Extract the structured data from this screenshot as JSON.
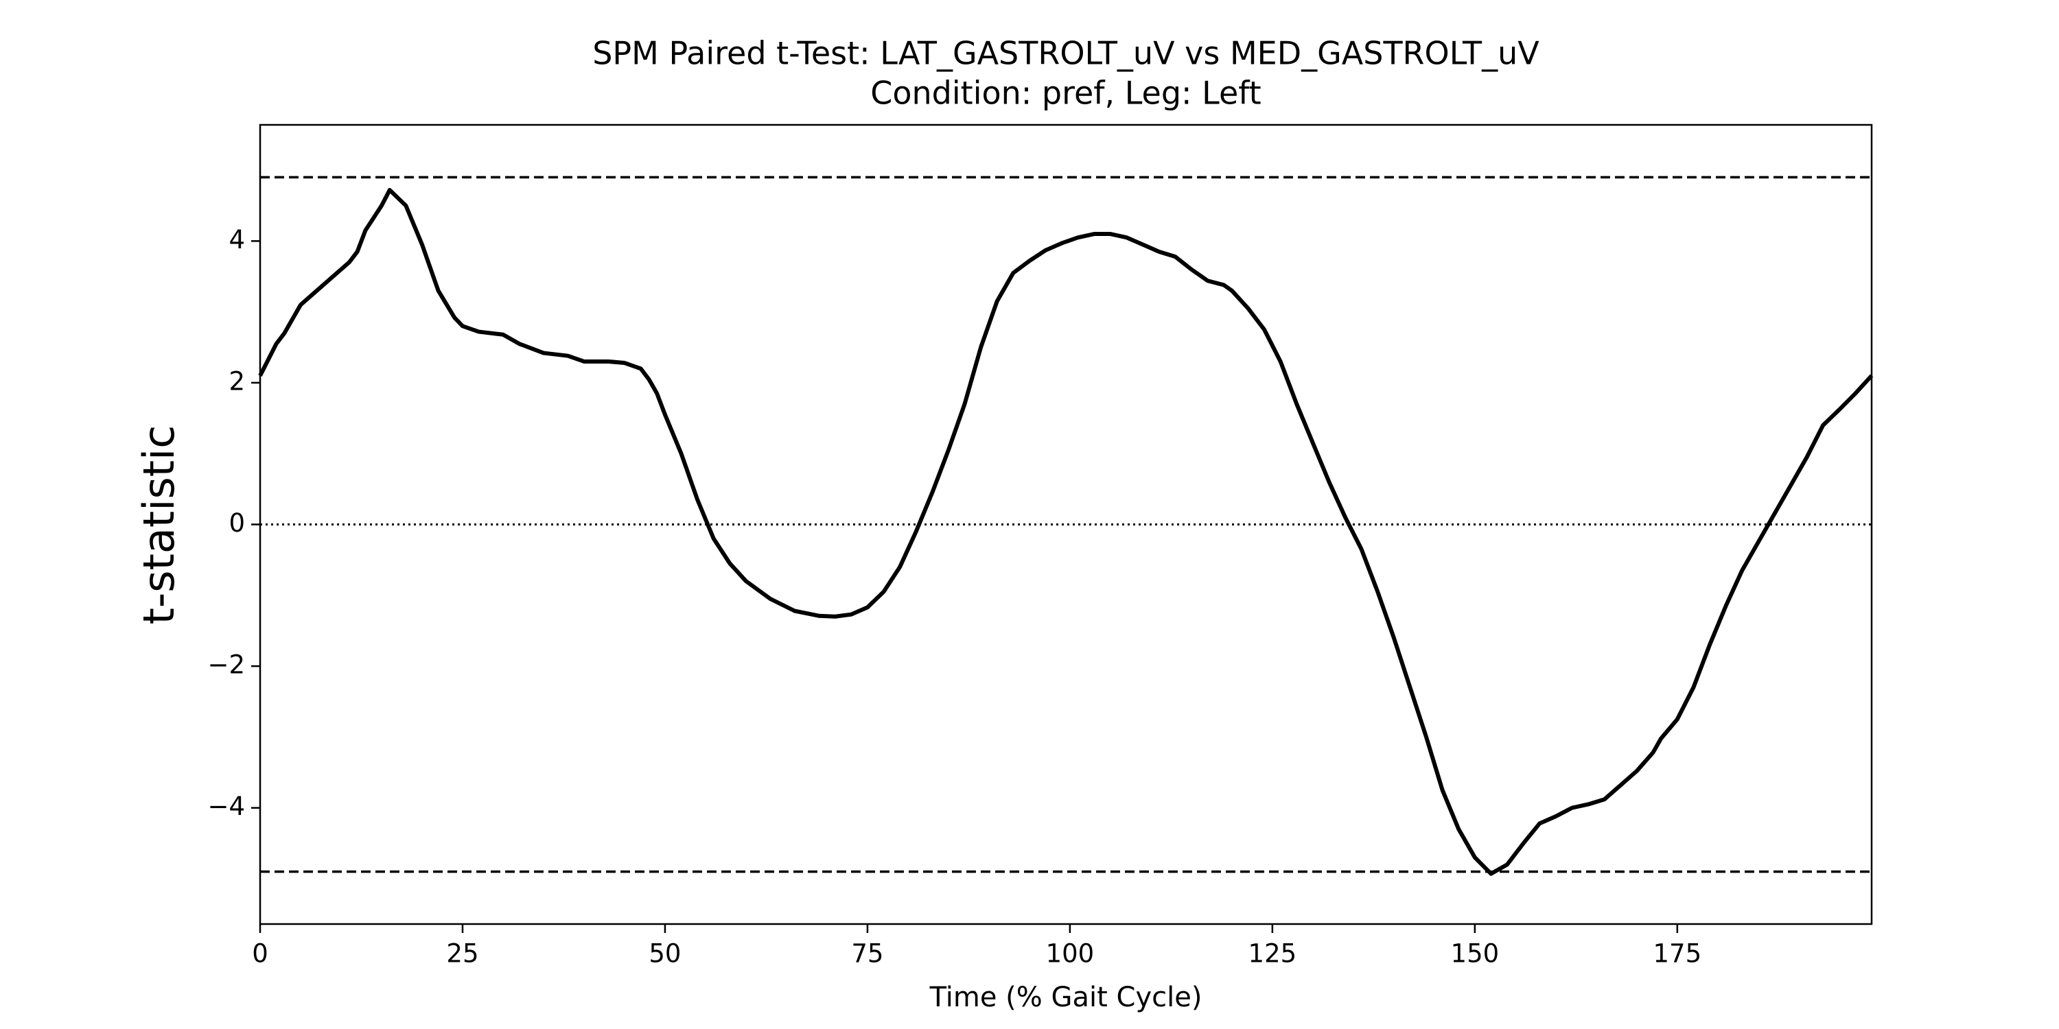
{
  "chart_data": {
    "type": "line",
    "title": "SPM Paired t-Test: LAT_GASTROLT_uV vs MED_GASTROLT_uV",
    "subtitle": "Condition: pref, Leg: Left",
    "x_label": "Time (% Gait Cycle)",
    "y_label": "t-statistic",
    "x": [
      0,
      2,
      3,
      5,
      7,
      9,
      11,
      12,
      13,
      15,
      16,
      18,
      20,
      22,
      24,
      25,
      27,
      30,
      32,
      35,
      38,
      40,
      43,
      45,
      47,
      48,
      49,
      50,
      52,
      54,
      56,
      58,
      60,
      63,
      66,
      69,
      71,
      73,
      75,
      77,
      79,
      81,
      83,
      85,
      87,
      89,
      91,
      93,
      95,
      97,
      99,
      101,
      103,
      105,
      107,
      109,
      111,
      113,
      115,
      117,
      119,
      120,
      122,
      124,
      126,
      128,
      130,
      132,
      134,
      136,
      138,
      140,
      142,
      144,
      146,
      148,
      150,
      152,
      154,
      156,
      158,
      160,
      162,
      164,
      166,
      168,
      170,
      172,
      173,
      175,
      177,
      179,
      181,
      183,
      185,
      187,
      189,
      191,
      193,
      195,
      197,
      199
    ],
    "series": [
      {
        "name": "t-statistic",
        "color": "#000000",
        "values": [
          2.1,
          2.55,
          2.7,
          3.1,
          3.3,
          3.5,
          3.7,
          3.85,
          4.15,
          4.5,
          4.72,
          4.5,
          3.95,
          3.3,
          2.92,
          2.8,
          2.72,
          2.68,
          2.55,
          2.42,
          2.38,
          2.3,
          2.3,
          2.28,
          2.2,
          2.05,
          1.85,
          1.55,
          1.0,
          0.35,
          -0.2,
          -0.55,
          -0.8,
          -1.05,
          -1.22,
          -1.29,
          -1.3,
          -1.27,
          -1.17,
          -0.95,
          -0.6,
          -0.1,
          0.45,
          1.05,
          1.7,
          2.5,
          3.15,
          3.55,
          3.72,
          3.87,
          3.97,
          4.05,
          4.1,
          4.1,
          4.05,
          3.95,
          3.85,
          3.78,
          3.6,
          3.44,
          3.38,
          3.3,
          3.05,
          2.75,
          2.3,
          1.7,
          1.15,
          0.6,
          0.1,
          -0.35,
          -0.95,
          -1.6,
          -2.3,
          -3.0,
          -3.75,
          -4.3,
          -4.7,
          -4.93,
          -4.8,
          -4.5,
          -4.22,
          -4.12,
          -4.0,
          -3.95,
          -3.88,
          -3.68,
          -3.48,
          -3.22,
          -3.02,
          -2.75,
          -2.3,
          -1.7,
          -1.15,
          -0.65,
          -0.25,
          0.15,
          0.55,
          0.95,
          1.4,
          1.62,
          1.85,
          2.1
        ]
      }
    ],
    "reference_lines": [
      {
        "value": 4.9,
        "style": "dashed"
      },
      {
        "value": -4.9,
        "style": "dashed"
      },
      {
        "value": 0,
        "style": "dotted"
      }
    ],
    "xlim": [
      0,
      199
    ],
    "xticks": [
      0,
      25,
      50,
      75,
      100,
      125,
      150,
      175
    ],
    "ylim": [
      -5.64,
      5.64
    ],
    "yticks": [
      {
        "value": -4,
        "label": "−4"
      },
      {
        "value": -2,
        "label": "−2"
      },
      0,
      2,
      4
    ],
    "grid": false
  }
}
